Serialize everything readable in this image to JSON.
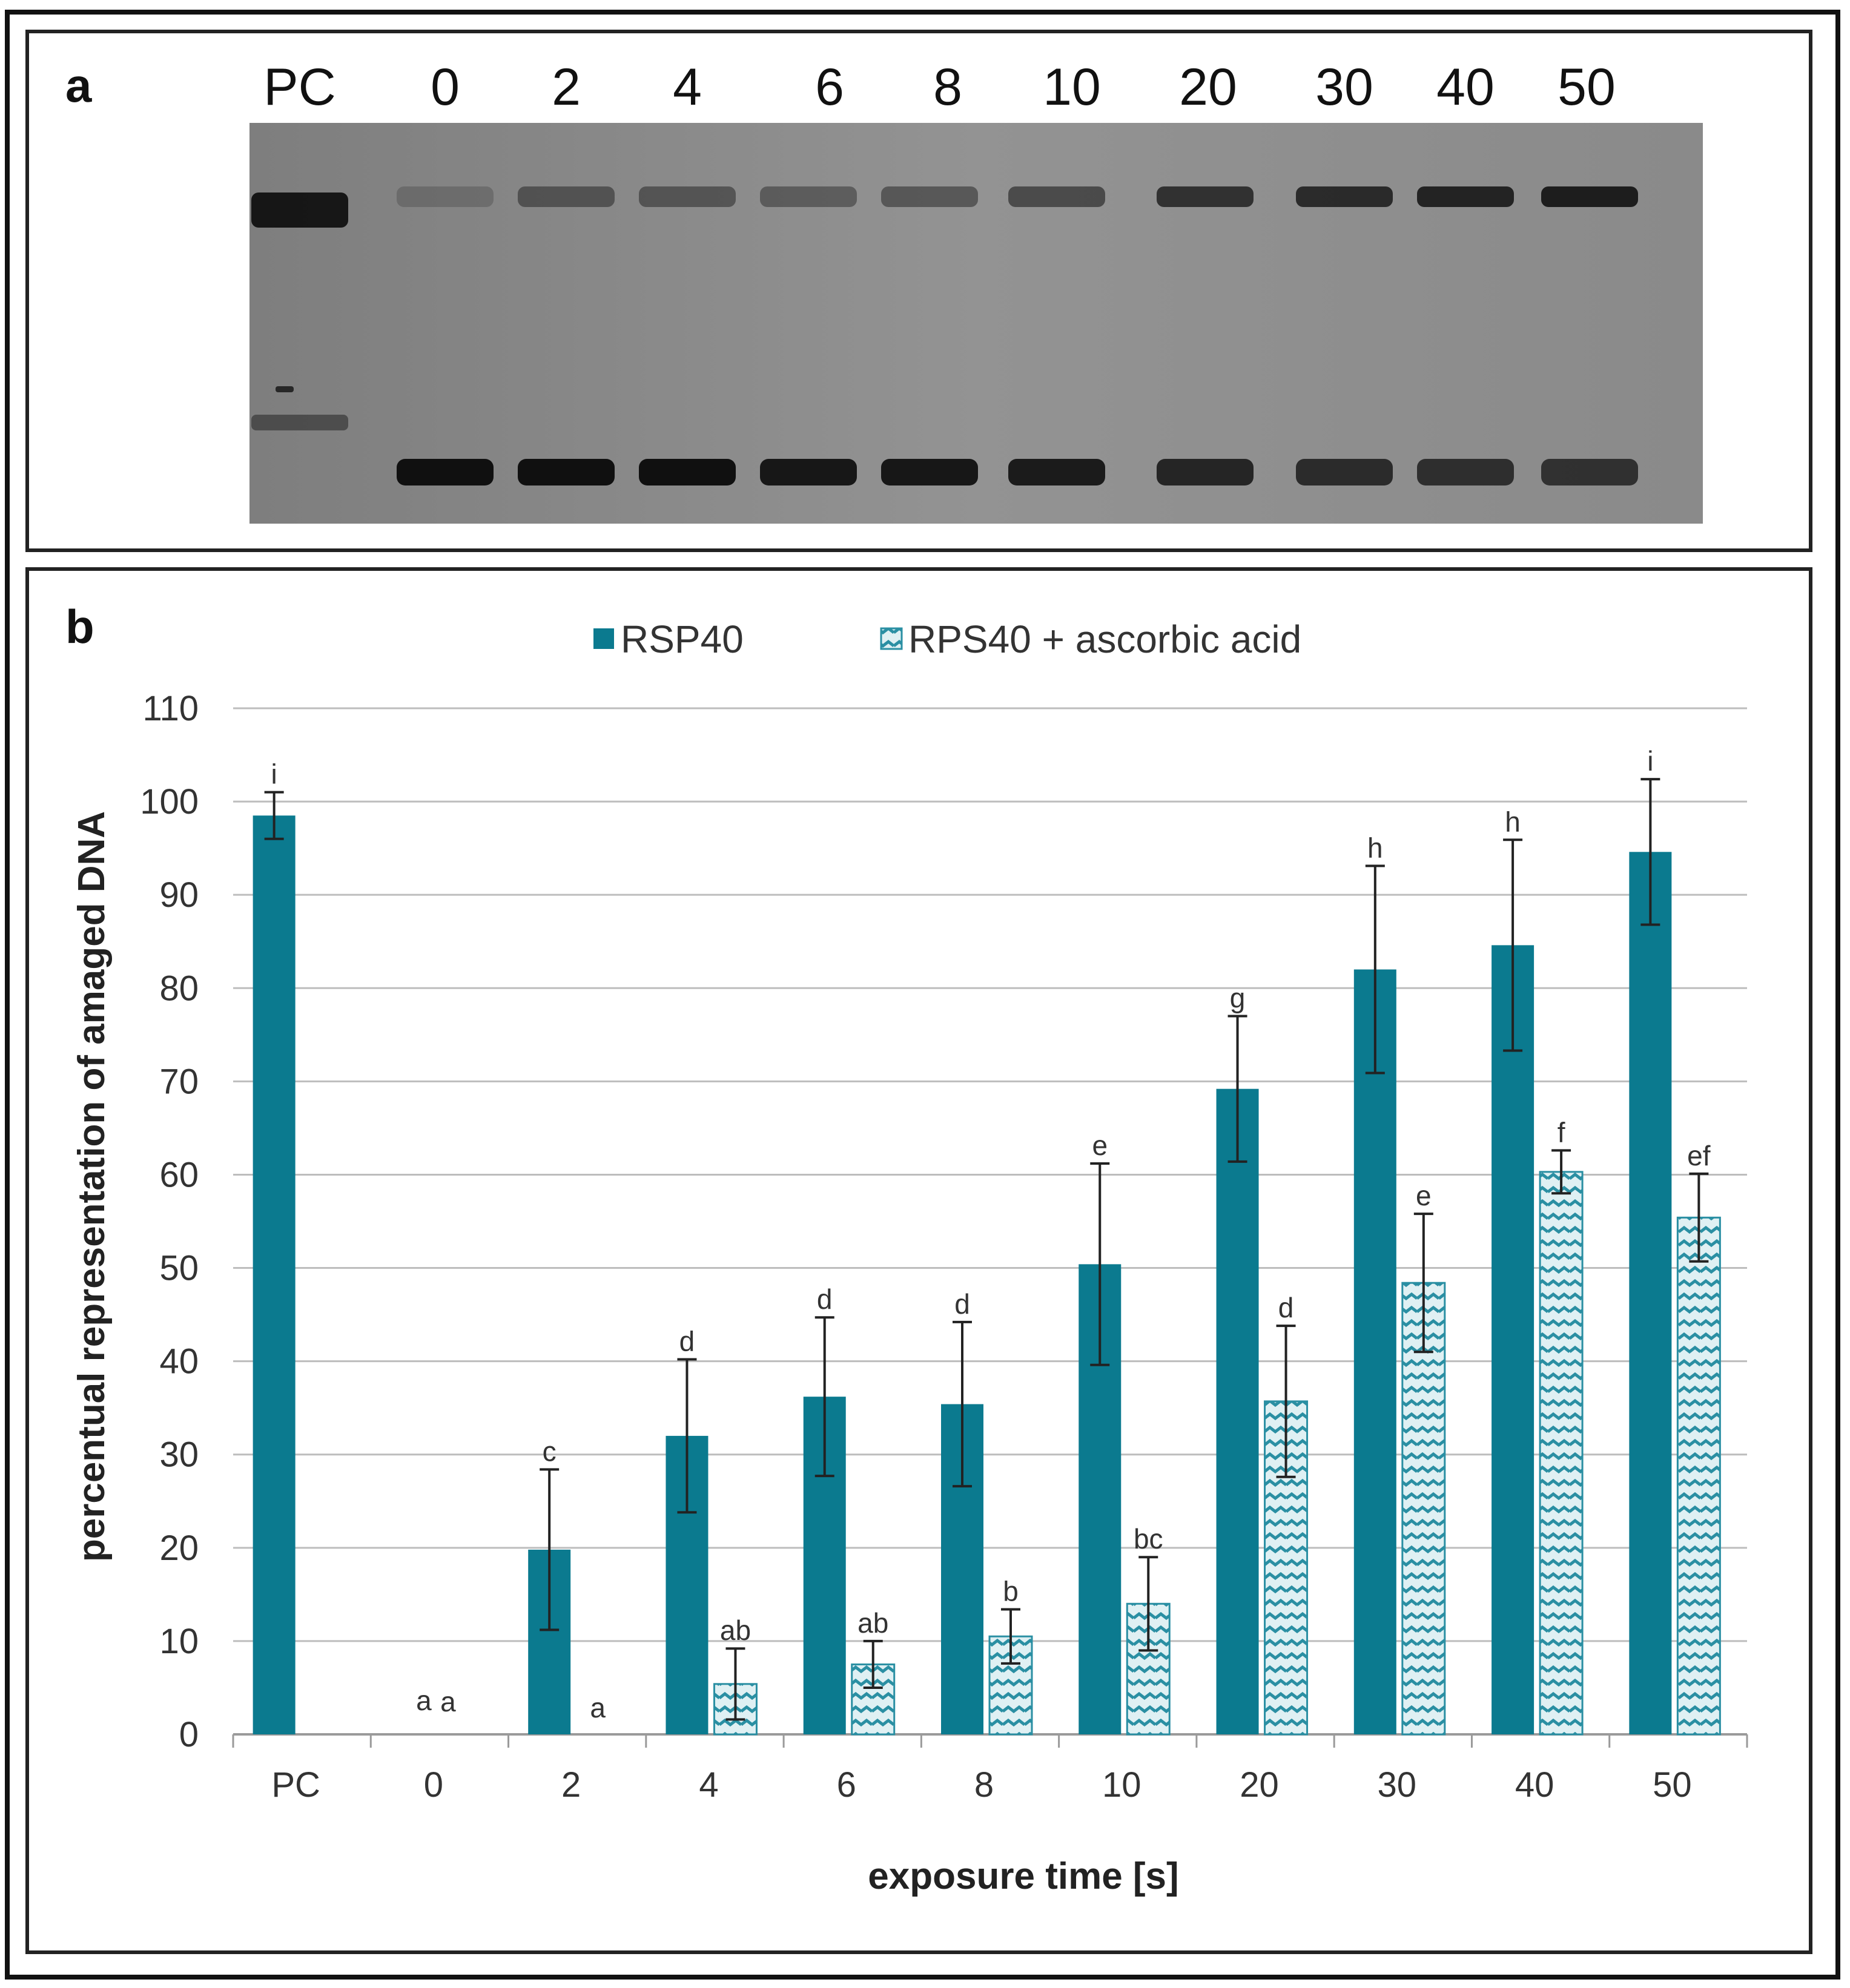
{
  "panel_a": {
    "letter": "a",
    "lane_labels": [
      "PC",
      "0",
      "2",
      "4",
      "6",
      "8",
      "10",
      "20",
      "30",
      "40",
      "50"
    ],
    "upper_band_intensity": [
      0.95,
      0.2,
      0.45,
      0.45,
      0.4,
      0.45,
      0.55,
      0.75,
      0.8,
      0.85,
      0.9
    ],
    "lower_band_intensity": [
      0.55,
      0.95,
      0.95,
      0.95,
      0.9,
      0.9,
      0.88,
      0.8,
      0.75,
      0.72,
      0.7
    ]
  },
  "panel_b": {
    "letter": "b"
  },
  "colors": {
    "series1": "#0b7a8f",
    "series2_stroke": "#2a8fa3",
    "series2_fill": "#dff0f3",
    "grid": "#bdbdbd",
    "gel_background": "#8a8a8a"
  },
  "chart_data": {
    "type": "bar",
    "xlabel": "exposure time [s]",
    "ylabel": "percentual representation of amaged DNA",
    "ylim": [
      0,
      110
    ],
    "yticks": [
      0,
      10,
      20,
      30,
      40,
      50,
      60,
      70,
      80,
      90,
      100,
      110
    ],
    "grid": true,
    "legend_position": "top-center",
    "categories": [
      "PC",
      "0",
      "2",
      "4",
      "6",
      "8",
      "10",
      "20",
      "30",
      "40",
      "50"
    ],
    "series": [
      {
        "name": "RSP40",
        "values": [
          98.5,
          null,
          19.8,
          32,
          36.2,
          35.4,
          50.4,
          69.2,
          82,
          84.6,
          94.6
        ],
        "errors": [
          2.5,
          null,
          8.6,
          8.2,
          8.5,
          8.8,
          10.8,
          7.8,
          11.1,
          11.3,
          7.8
        ],
        "labels": [
          "i",
          "a",
          "c",
          "d",
          "d",
          "d",
          "e",
          "g",
          "h",
          "h",
          "i"
        ]
      },
      {
        "name": "RPS40 + ascorbic acid",
        "values": [
          null,
          null,
          null,
          5.4,
          7.5,
          10.5,
          14,
          35.7,
          48.4,
          60.3,
          55.4
        ],
        "errors": [
          null,
          null,
          null,
          3.8,
          2.5,
          2.9,
          5,
          8.1,
          7.4,
          2.3,
          4.7
        ],
        "labels": [
          "",
          "a",
          "a",
          "ab",
          "ab",
          "b",
          "bc",
          "d",
          "e",
          "f",
          "ef"
        ]
      }
    ]
  }
}
